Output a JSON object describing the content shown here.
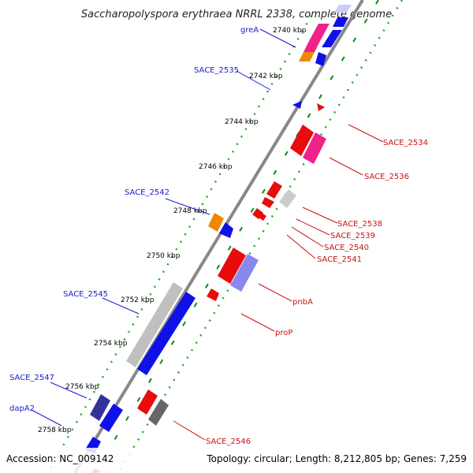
{
  "title": "Saccharopolyspora erythraea NRRL 2338, complete genome",
  "accession": "Accession: NC_009142",
  "topology": "Topology: circular; Length: 8,212,805 bp; Genes: 7,259",
  "ticks": [
    "2740 kbp",
    "2742 kbp",
    "2744 kbp",
    "2746 kbp",
    "2748 kbp",
    "2750 kbp",
    "2752 kbp",
    "2754 kbp",
    "2756 kbp",
    "2758 kbp"
  ],
  "gene_labels_left": [
    "greA",
    "SACE_2535",
    "SACE_2542",
    "SACE_2545",
    "SACE_2547",
    "dapA2"
  ],
  "gene_labels_right": [
    "SACE_2534",
    "SACE_2536",
    "SACE_2538",
    "SACE_2539",
    "SACE_2540",
    "SACE_2541",
    "pnbA",
    "proP",
    "SACE_2546"
  ],
  "colors": {
    "forward": "#1010e8",
    "reverse": "#e80c0c",
    "pink": "#ee2288",
    "orange": "#ee8800",
    "gray": "#bbbbbb",
    "darkgray": "#666666",
    "lightblue": "#8888ee",
    "purple": "#333399",
    "backbone": "#888888",
    "gc_dots": "#118811"
  }
}
